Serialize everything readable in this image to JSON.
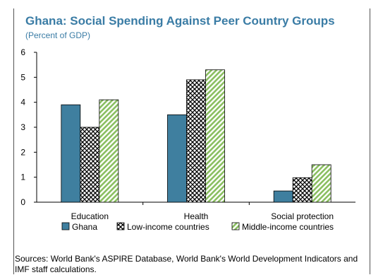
{
  "title": "Ghana: Social Spending Against Peer Country Groups",
  "subtitle": "(Percent of GDP)",
  "source": "Sources: World Bank's ASPIRE Database, World Bank's World Development Indicators and IMF staff calculations.",
  "colors": {
    "ghana": "#3f7f9f",
    "low_income": "#000000",
    "middle_income": "#8bbf62",
    "title": "#3a7ca5"
  },
  "chart_data": {
    "type": "bar",
    "categories": [
      "Education",
      "Health",
      "Social protection"
    ],
    "series": [
      {
        "name": "Ghana",
        "values": [
          3.9,
          3.5,
          0.45
        ],
        "pattern": "solid"
      },
      {
        "name": "Low-income countries",
        "values": [
          3.0,
          4.9,
          0.98
        ],
        "pattern": "crosshatch"
      },
      {
        "name": "Middle-income countries",
        "values": [
          4.1,
          5.3,
          1.5
        ],
        "pattern": "diagonal"
      }
    ],
    "ylim": [
      0,
      6
    ],
    "yticks": [
      "0",
      "1",
      "2",
      "3",
      "4",
      "5",
      "6"
    ],
    "grid": false,
    "legend": "bottom"
  }
}
